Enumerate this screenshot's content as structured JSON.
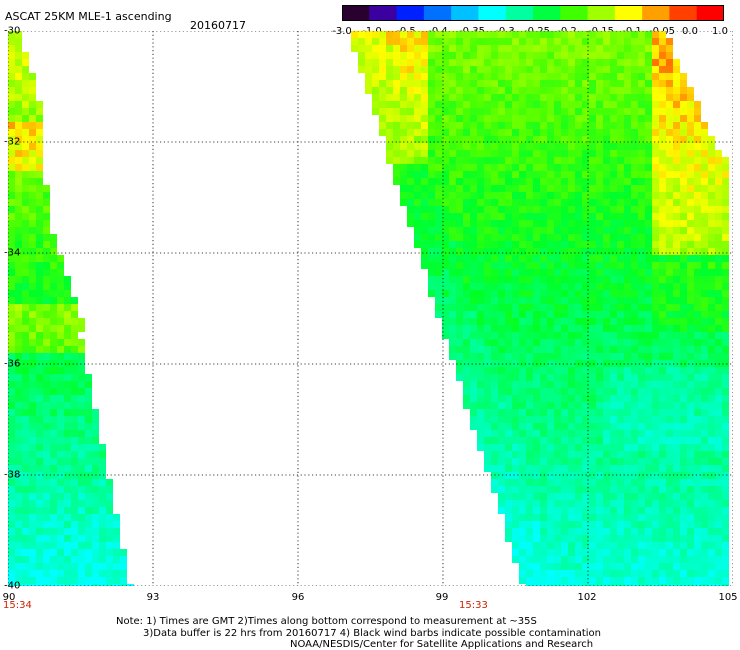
{
  "header": {
    "title": "ASCAT 25KM MLE-1 ascending",
    "date": "20160717"
  },
  "colorbar": {
    "labels": [
      "-3.0",
      "-1.0",
      "-0.5",
      "-0.4",
      "-0.35",
      "-0.3",
      "-0.25",
      "-0.2",
      "-0.15",
      "-0.1",
      "-0.05",
      "0.0",
      "1.0"
    ],
    "colors": [
      "#2a0030",
      "#3c00a0",
      "#0020ff",
      "#0070ff",
      "#00c0ff",
      "#00ffff",
      "#00ffa0",
      "#00ff40",
      "#40ff00",
      "#a0ff00",
      "#ffff00",
      "#ffa000",
      "#ff4000",
      "#ff0000"
    ]
  },
  "map": {
    "lon_range": [
      90,
      105
    ],
    "lat_range": [
      -40,
      -30
    ],
    "x_ticks": [
      "90",
      "93",
      "96",
      "99",
      "102",
      "105"
    ],
    "y_ticks": [
      "-30",
      "-32",
      "-34",
      "-36",
      "-38",
      "-40"
    ],
    "pass_times": [
      "15:34",
      "15:33"
    ]
  },
  "notes": [
    "Note: 1) Times are GMT 2)Times along bottom correspond to measurement at ~35S",
    "3)Data buffer is 22 hrs from 20160717 4) Black wind barbs indicate possible contamination",
    "NOAA/NESDIS/Center for Satellite Applications and Research"
  ]
}
